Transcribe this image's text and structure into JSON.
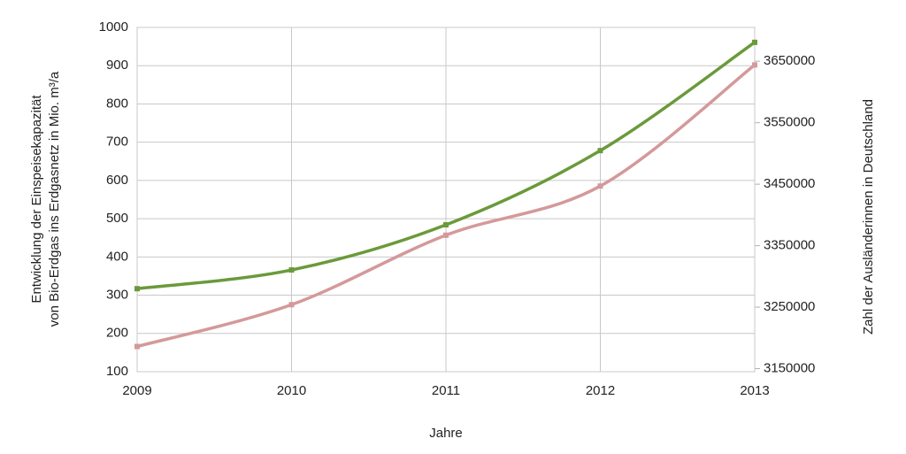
{
  "chart_data": {
    "type": "line",
    "x_label": "Jahre",
    "y_label": [
      "Entwicklung der Einspeisekapazität",
      "von Bio-Erdgas ins Erdgasnetz in Mio. m³/a"
    ],
    "y2_label": "Zahl der Ausländerinnen in Deutschland",
    "x": [
      2009,
      2010,
      2011,
      2012,
      2013
    ],
    "xlim": [
      2009,
      2013
    ],
    "xticks": [
      2009,
      2010,
      2011,
      2012,
      2013
    ],
    "ylim": [
      100,
      1000
    ],
    "yticks": [
      100,
      200,
      300,
      400,
      500,
      600,
      700,
      800,
      900,
      1000
    ],
    "y2lim": [
      3145000,
      3705000
    ],
    "y2ticks": [
      3150000,
      3250000,
      3350000,
      3450000,
      3550000,
      3650000
    ],
    "grid": true,
    "series": [
      {
        "name": "Einspeisekapazität",
        "color": "#6a9a3a",
        "values": [
          317,
          366,
          484,
          678,
          961
        ]
      },
      {
        "name": "Ausländerinnen",
        "color": "#d4999a",
        "axis": "y2",
        "values": [
          3186000,
          3254000,
          3367000,
          3447000,
          3644000
        ]
      }
    ]
  }
}
